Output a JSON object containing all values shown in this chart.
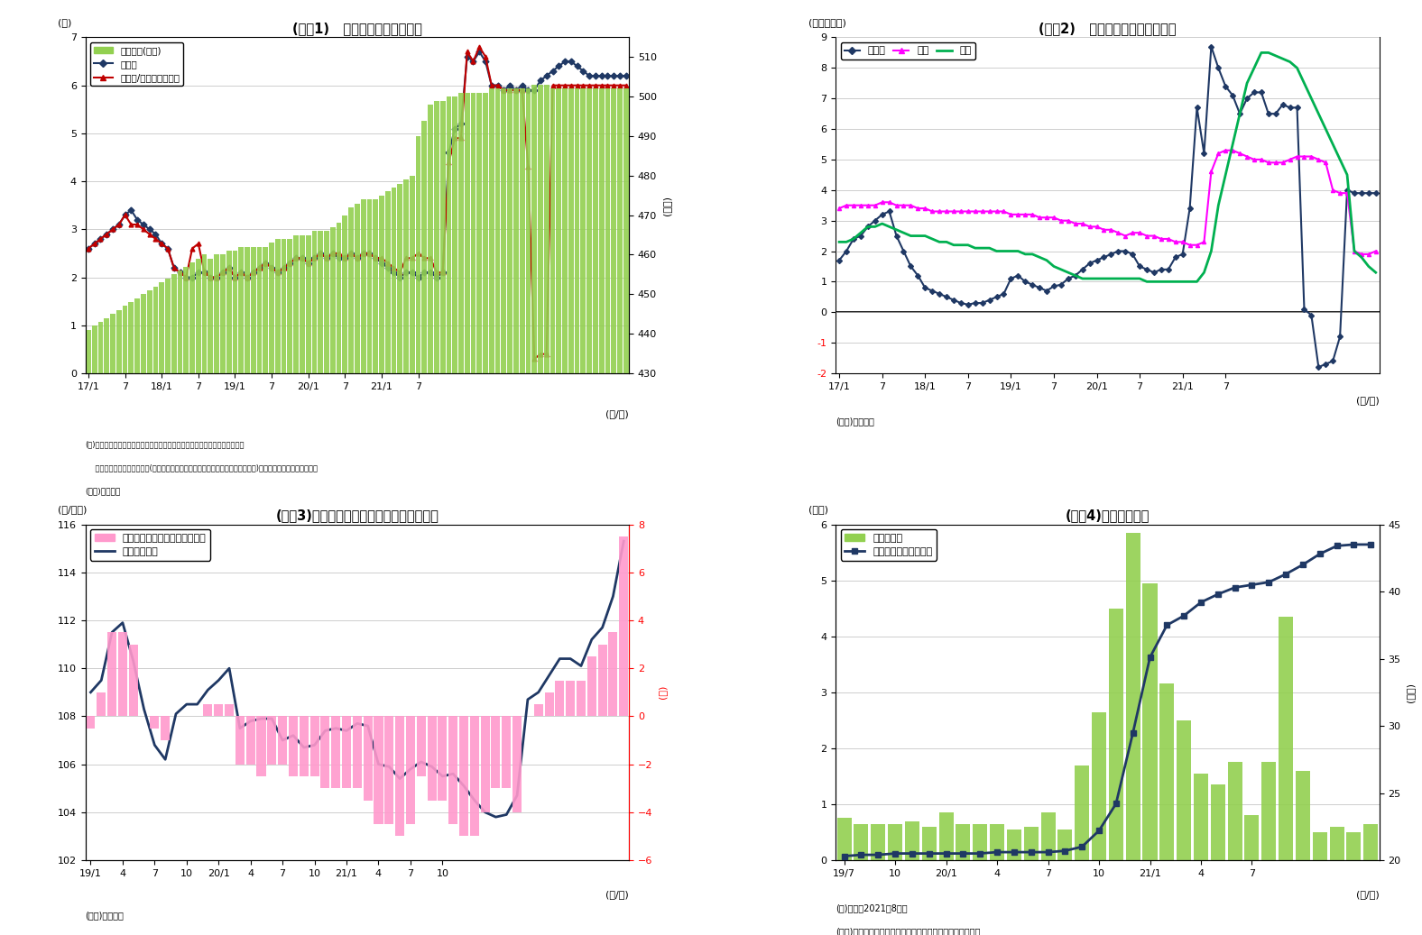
{
  "fig1": {
    "title": "(図表1)   銀行貸出残高の増減率",
    "ylabel_left": "(％)",
    "ylabel_right": "(兆円)",
    "xlabel": "(年/月)",
    "note1": "(注)特殊要因調整後は、為替変動・債権償却・流動化等の影響を考慮したもの",
    "note2": "    特殊要因調整後の前年比＝(今月の調整後貸出残高－前年同月の調整前貸出残高)／前年同月の調整前貸出残高",
    "note3": "(資料)日本銀行",
    "bar_color": "#92d050",
    "line1_color": "#1f3864",
    "line2_color": "#c00000",
    "legend_labels": [
      "貸出残高(右軸)",
      "前年比",
      "前年比/特殊要因調整後"
    ],
    "bar_values": [
      441,
      442,
      443,
      444,
      445,
      446,
      447,
      448,
      449,
      450,
      451,
      452,
      453,
      454,
      455,
      456,
      457,
      458,
      459,
      460,
      459,
      460,
      460,
      461,
      461,
      462,
      462,
      462,
      462,
      462,
      463,
      464,
      464,
      464,
      465,
      465,
      465,
      466,
      466,
      466,
      467,
      468,
      470,
      472,
      473,
      474,
      474,
      474,
      475,
      476,
      477,
      478,
      479,
      480,
      490,
      494,
      498,
      499,
      499,
      500,
      500,
      501,
      501,
      501,
      501,
      501,
      502,
      502,
      502,
      502,
      502,
      502,
      502,
      503,
      503,
      503,
      502,
      502,
      502,
      502,
      502,
      502,
      502,
      502,
      502,
      502,
      502,
      502,
      502
    ],
    "yoy_values": [
      2.6,
      2.7,
      2.8,
      2.9,
      3.0,
      3.1,
      3.3,
      3.4,
      3.2,
      3.1,
      3.0,
      2.9,
      2.7,
      2.6,
      2.2,
      2.1,
      2.0,
      2.0,
      2.1,
      2.1,
      2.0,
      2.0,
      2.1,
      2.2,
      2.0,
      2.1,
      2.0,
      2.1,
      2.2,
      2.3,
      2.2,
      2.1,
      2.2,
      2.3,
      2.4,
      2.4,
      2.3,
      2.4,
      2.5,
      2.4,
      2.5,
      2.4,
      2.4,
      2.5,
      2.4,
      2.5,
      2.5,
      2.4,
      2.3,
      2.2,
      2.1,
      2.0,
      2.1,
      2.1,
      2.0,
      2.1,
      2.1,
      2.0,
      2.1,
      4.6,
      5.1,
      5.2,
      6.6,
      6.5,
      6.7,
      6.5,
      6.0,
      6.0,
      5.9,
      6.0,
      5.9,
      6.0,
      5.9,
      5.9,
      6.1,
      6.2,
      6.3,
      6.4,
      6.5,
      6.5,
      6.4,
      6.3,
      6.2,
      6.2,
      6.2,
      6.2,
      6.2,
      6.2,
      6.2
    ],
    "adj_values": [
      2.6,
      2.7,
      2.8,
      2.9,
      3.0,
      3.1,
      3.3,
      3.1,
      3.1,
      3.0,
      2.9,
      2.8,
      2.7,
      2.6,
      2.2,
      2.1,
      2.0,
      2.6,
      2.7,
      2.1,
      2.0,
      2.0,
      2.1,
      2.2,
      2.0,
      2.1,
      2.0,
      2.1,
      2.2,
      2.3,
      2.2,
      2.1,
      2.2,
      2.3,
      2.4,
      2.4,
      2.3,
      2.4,
      2.5,
      2.4,
      2.5,
      2.5,
      2.4,
      2.5,
      2.4,
      2.5,
      2.5,
      2.4,
      2.4,
      2.3,
      2.2,
      2.1,
      2.4,
      2.4,
      2.5,
      2.4,
      2.4,
      2.1,
      2.1,
      4.4,
      4.9,
      4.9,
      6.7,
      6.5,
      6.8,
      6.6,
      6.0,
      6.0,
      5.9,
      5.9,
      5.9,
      5.9,
      4.3,
      0.3,
      0.4,
      0.4,
      6.0,
      6.0,
      6.0,
      6.0,
      6.0,
      6.0,
      6.0,
      6.0,
      6.0,
      6.0,
      6.0,
      6.0,
      6.0
    ]
  },
  "fig2": {
    "title": "(図表2)   業態別の貸出残高増減率",
    "ylabel_left": "(前年比、％)",
    "xlabel": "(年/月)",
    "note": "(資料)日本銀行",
    "line1_color": "#1f3864",
    "line2_color": "#ff00ff",
    "line3_color": "#00b050",
    "legend_labels": [
      "都銀等",
      "地銀",
      "信金"
    ],
    "toshi_values": [
      1.7,
      2.0,
      2.4,
      2.5,
      2.8,
      3.0,
      3.2,
      3.3,
      2.5,
      2.0,
      1.5,
      1.2,
      0.8,
      0.7,
      0.6,
      0.5,
      0.4,
      0.3,
      0.25,
      0.3,
      0.3,
      0.4,
      0.5,
      0.6,
      1.1,
      1.2,
      1.0,
      0.9,
      0.8,
      0.7,
      0.85,
      0.9,
      1.1,
      1.2,
      1.4,
      1.6,
      1.7,
      1.8,
      1.9,
      2.0,
      2.0,
      1.9,
      1.5,
      1.4,
      1.3,
      1.4,
      1.4,
      1.8,
      1.9,
      3.4,
      6.7,
      5.2,
      8.7,
      8.0,
      7.4,
      7.1,
      6.5,
      7.0,
      7.2,
      7.2,
      6.5,
      6.5,
      6.8,
      6.7,
      6.7,
      0.1,
      -0.1,
      -1.8,
      -1.7,
      -1.6,
      -0.8,
      4.0,
      3.9,
      3.9,
      3.9,
      3.9
    ],
    "chigin_values": [
      3.4,
      3.5,
      3.5,
      3.5,
      3.5,
      3.5,
      3.6,
      3.6,
      3.5,
      3.5,
      3.5,
      3.4,
      3.4,
      3.3,
      3.3,
      3.3,
      3.3,
      3.3,
      3.3,
      3.3,
      3.3,
      3.3,
      3.3,
      3.3,
      3.2,
      3.2,
      3.2,
      3.2,
      3.1,
      3.1,
      3.1,
      3.0,
      3.0,
      2.9,
      2.9,
      2.8,
      2.8,
      2.7,
      2.7,
      2.6,
      2.5,
      2.6,
      2.6,
      2.5,
      2.5,
      2.4,
      2.4,
      2.3,
      2.3,
      2.2,
      2.2,
      2.3,
      4.6,
      5.2,
      5.3,
      5.3,
      5.2,
      5.1,
      5.0,
      5.0,
      4.9,
      4.9,
      4.9,
      5.0,
      5.1,
      5.1,
      5.1,
      5.0,
      4.9,
      4.0,
      3.9,
      3.9,
      2.0,
      1.9,
      1.9,
      2.0
    ],
    "shinkin_values": [
      2.3,
      2.3,
      2.4,
      2.6,
      2.8,
      2.8,
      2.9,
      2.8,
      2.7,
      2.6,
      2.5,
      2.5,
      2.5,
      2.4,
      2.3,
      2.3,
      2.2,
      2.2,
      2.2,
      2.1,
      2.1,
      2.1,
      2.0,
      2.0,
      2.0,
      2.0,
      1.9,
      1.9,
      1.8,
      1.7,
      1.5,
      1.4,
      1.3,
      1.2,
      1.1,
      1.1,
      1.1,
      1.1,
      1.1,
      1.1,
      1.1,
      1.1,
      1.1,
      1.0,
      1.0,
      1.0,
      1.0,
      1.0,
      1.0,
      1.0,
      1.0,
      1.3,
      2.0,
      3.5,
      4.5,
      5.5,
      6.5,
      7.5,
      8.0,
      8.5,
      8.5,
      8.4,
      8.3,
      8.2,
      8.0,
      7.5,
      7.0,
      6.5,
      6.0,
      5.5,
      5.0,
      4.5,
      2.0,
      1.8,
      1.5,
      1.3
    ]
  },
  "fig3": {
    "title": "(図表3)ドル円レートの前年比（月次平均）",
    "ylabel_left": "(円/ドル)",
    "ylabel_right": "(％)",
    "xlabel": "(年/月)",
    "note": "(資料)日本銀行",
    "bar_color": "#ff99cc",
    "line_color": "#1f3864",
    "legend_labels": [
      "ドル円レートの前年比（右軸）",
      "ドル円レート"
    ],
    "rate_values": [
      109.0,
      109.5,
      111.5,
      111.9,
      110.3,
      108.3,
      106.8,
      106.2,
      108.1,
      108.5,
      108.5,
      109.1,
      109.5,
      110.0,
      107.5,
      107.8,
      107.9,
      107.9,
      107.0,
      107.2,
      106.7,
      106.8,
      107.4,
      107.5,
      107.4,
      107.7,
      107.6,
      106.0,
      105.9,
      105.4,
      105.8,
      106.1,
      105.9,
      105.5,
      105.6,
      105.1,
      104.5,
      104.0,
      103.8,
      103.9,
      104.7,
      108.7,
      109.0,
      109.7,
      110.4,
      110.4,
      110.1,
      111.2,
      111.7,
      113.0,
      115.3
    ],
    "yoy_bar_values": [
      -0.5,
      1.0,
      3.5,
      3.5,
      3.0,
      0.0,
      -0.5,
      -1.0,
      0.0,
      0.0,
      0.0,
      0.5,
      0.5,
      0.5,
      -2.0,
      -2.0,
      -2.5,
      -2.0,
      -2.0,
      -2.5,
      -2.5,
      -2.5,
      -3.0,
      -3.0,
      -3.0,
      -3.0,
      -3.5,
      -4.5,
      -4.5,
      -5.0,
      -4.5,
      -2.5,
      -3.5,
      -3.5,
      -4.5,
      -5.0,
      -5.0,
      -4.0,
      -3.0,
      -3.0,
      -4.0,
      0.0,
      0.5,
      1.0,
      1.5,
      1.5,
      1.5,
      2.5,
      3.0,
      3.5,
      7.5
    ]
  },
  "fig4": {
    "title": "(図表4)信用保証実績",
    "ylabel_left": "(兆円)",
    "ylabel_right": "(兆円)",
    "xlabel": "(年/月)",
    "note1": "(注)直近は2021年8月分",
    "note2": "(資料)全国信用保証協会連合会よりニッセイ基礎研究所作成",
    "bar_color": "#92d050",
    "line_color": "#1f3864",
    "legend_labels": [
      "保証承諾額",
      "保証債務残高（右軸）"
    ],
    "bar_values": [
      0.75,
      0.65,
      0.65,
      0.65,
      0.7,
      0.6,
      0.85,
      0.65,
      0.65,
      0.65,
      0.55,
      0.6,
      0.85,
      0.55,
      1.7,
      2.65,
      4.5,
      5.85,
      4.95,
      3.15,
      2.5,
      1.55,
      1.35,
      1.75,
      0.8,
      1.75,
      4.35,
      1.6,
      0.5,
      0.6,
      0.5,
      0.65
    ],
    "line_values": [
      20.3,
      20.4,
      20.4,
      20.5,
      20.5,
      20.5,
      20.5,
      20.5,
      20.5,
      20.6,
      20.6,
      20.6,
      20.6,
      20.7,
      21.0,
      22.2,
      24.2,
      29.5,
      35.1,
      37.5,
      38.2,
      39.2,
      39.8,
      40.3,
      40.5,
      40.7,
      41.3,
      42.0,
      42.8,
      43.4,
      43.5,
      43.5
    ],
    "xtick_pos": [
      0,
      3,
      6,
      9,
      12,
      15,
      18,
      21,
      24
    ],
    "xtick_labels": [
      "19/7",
      "10",
      "20/1",
      "4",
      "7",
      "10",
      "21/1",
      "4",
      "7"
    ]
  }
}
